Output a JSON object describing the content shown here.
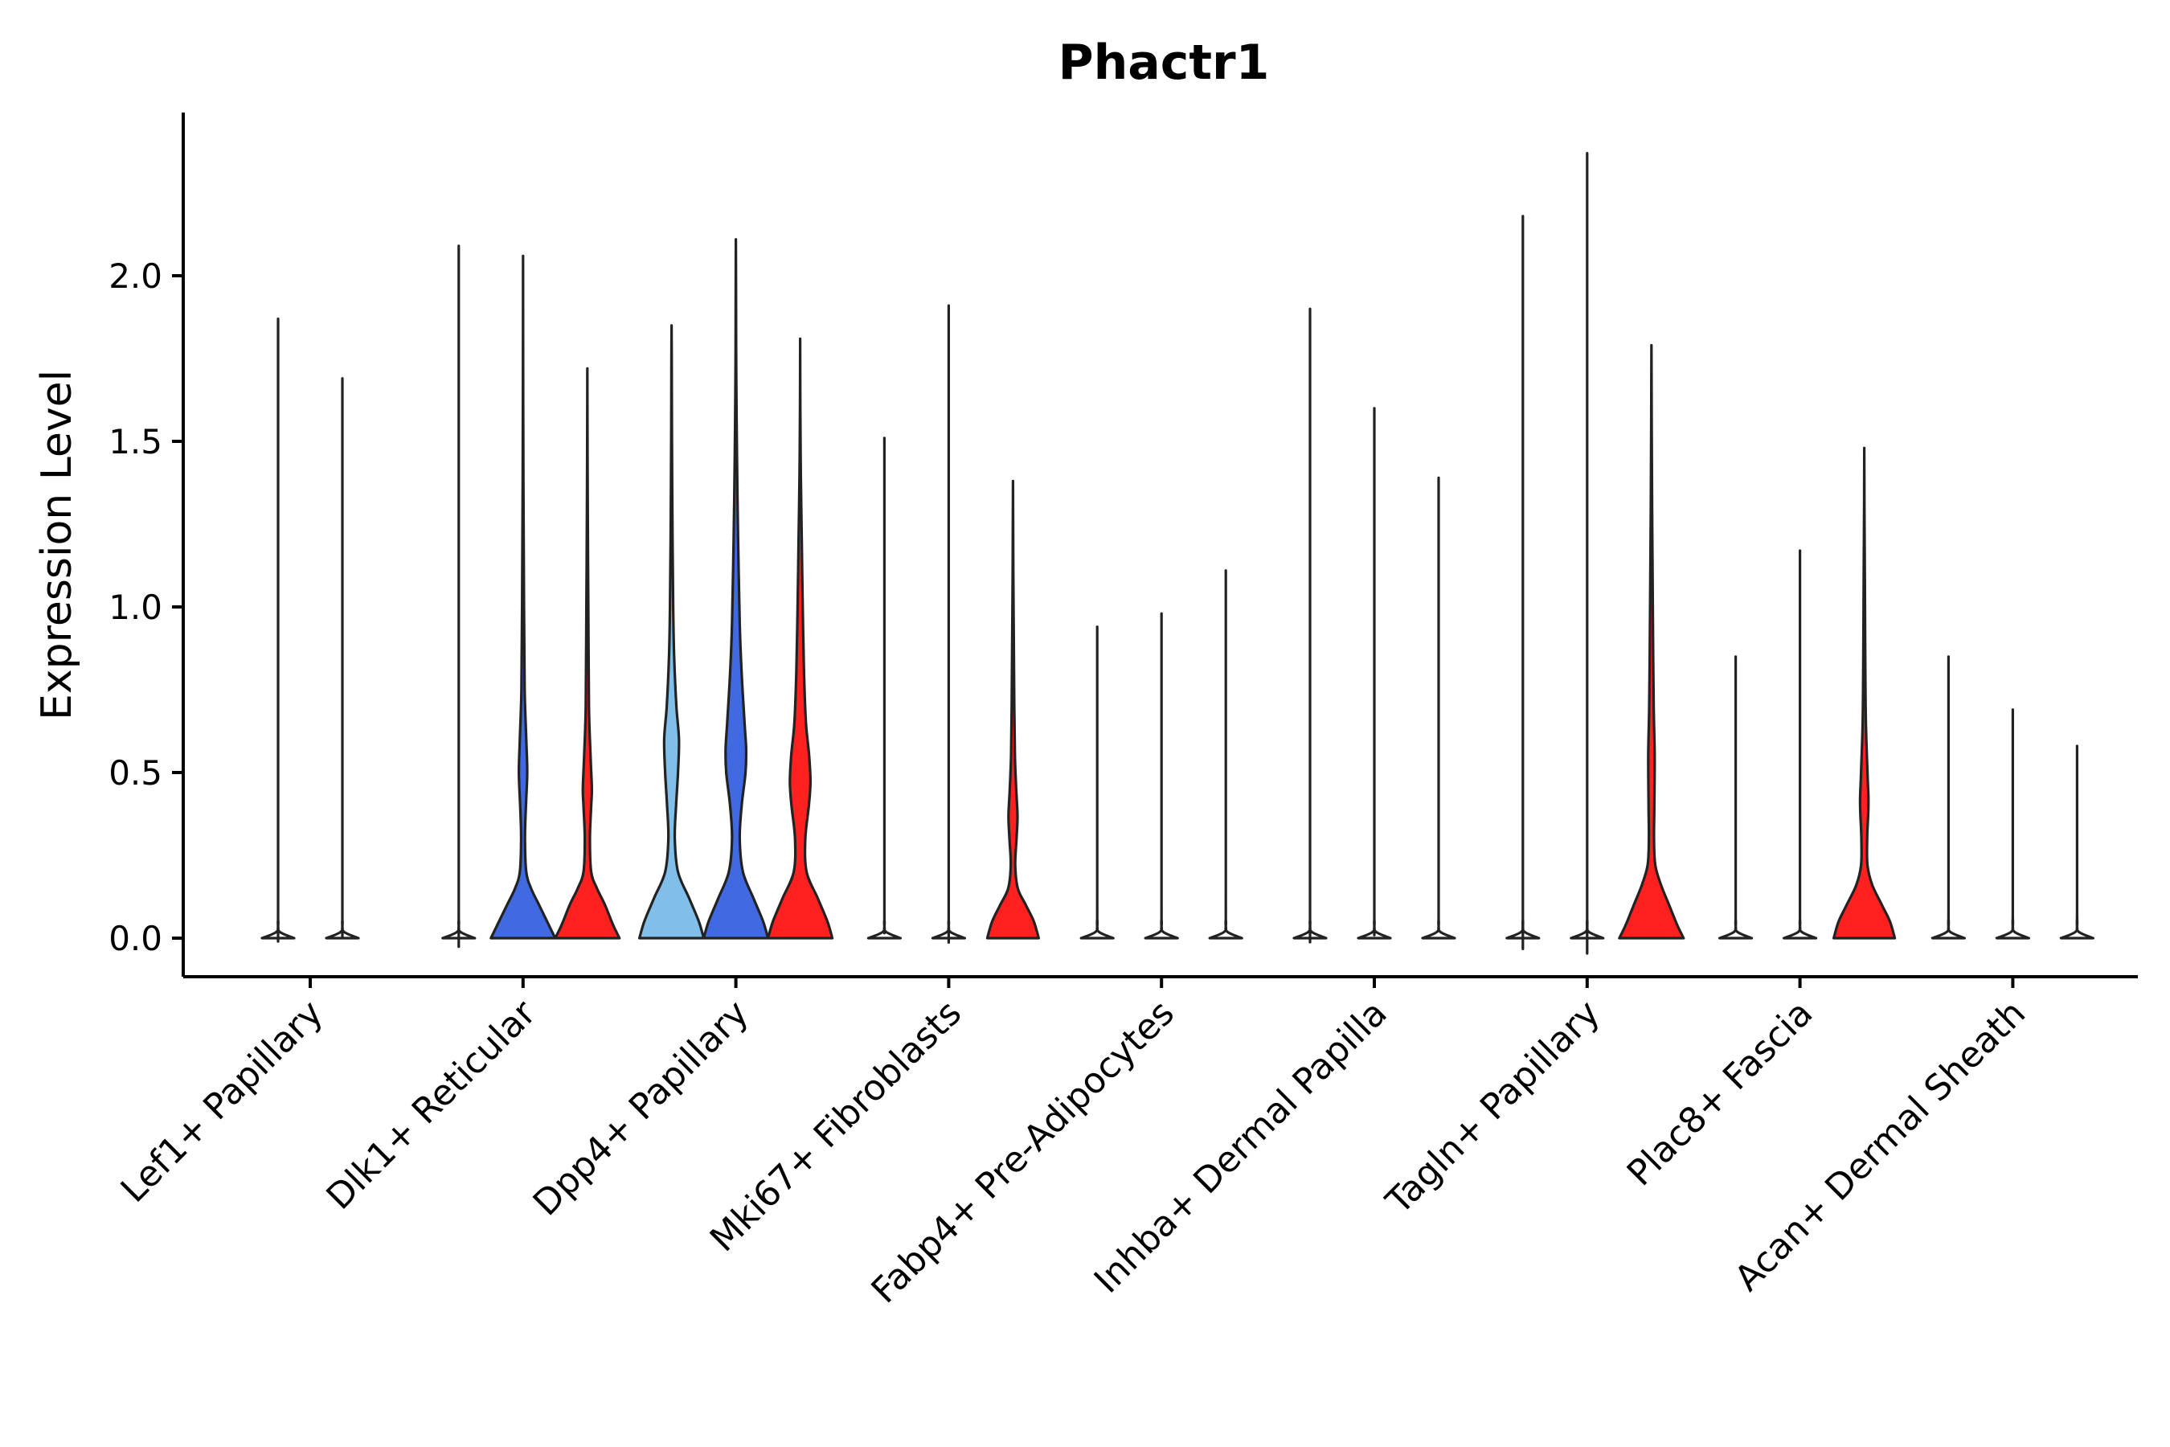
{
  "chart_data": {
    "type": "violin",
    "title": "Phactr1",
    "xlabel": "",
    "ylabel": "Expression Level",
    "ylim": [
      -0.12,
      2.5
    ],
    "yticks": [
      "0.0",
      "0.5",
      "1.0",
      "1.5",
      "2.0"
    ],
    "categories": [
      "Lef1+ Papillary",
      "Dlk1+ Reticular",
      "Dpp4+ Papillary",
      "Mki67+ Fibroblasts",
      "Fabp4+ Pre-Adipocytes",
      "Inhba+ Dermal Papilla",
      "Tagln+ Papillary",
      "Plac8+ Fascia",
      "Acan+ Dermal Sheath"
    ],
    "groups": [
      {
        "category": 0,
        "violins": [
          {
            "max": 1.87,
            "color": "#ffffff",
            "shape": [
              [
                0,
                0.5
              ],
              [
                0.02,
                0.04
              ],
              [
                0.05,
                0.005
              ],
              [
                0.15,
                0
              ]
            ]
          },
          {
            "max": 1.69,
            "color": "#ffffff",
            "shape": [
              [
                0,
                0.5
              ],
              [
                0.02,
                0.04
              ],
              [
                0.05,
                0.005
              ],
              [
                0.15,
                0
              ]
            ]
          }
        ]
      },
      {
        "category": 1,
        "violins": [
          {
            "max": 2.09,
            "color": "#ffffff",
            "shape": [
              [
                0,
                0.5
              ],
              [
                0.02,
                0.04
              ],
              [
                0.05,
                0.005
              ],
              [
                0.15,
                0
              ]
            ]
          },
          {
            "max": 2.06,
            "color": "#4169e1",
            "shape": [
              [
                0,
                1
              ],
              [
                0.04,
                0.8
              ],
              [
                0.1,
                0.5
              ],
              [
                0.15,
                0.25
              ],
              [
                0.2,
                0.1
              ],
              [
                0.3,
                0.06
              ],
              [
                0.4,
                0.09
              ],
              [
                0.5,
                0.13
              ],
              [
                0.6,
                0.1
              ],
              [
                0.75,
                0.05
              ],
              [
                1.0,
                0.03
              ],
              [
                1.3,
                0.015
              ],
              [
                1.6,
                0.006
              ]
            ]
          },
          {
            "max": 1.72,
            "color": "#ff2020",
            "shape": [
              [
                0,
                1
              ],
              [
                0.04,
                0.8
              ],
              [
                0.1,
                0.55
              ],
              [
                0.15,
                0.3
              ],
              [
                0.2,
                0.12
              ],
              [
                0.3,
                0.08
              ],
              [
                0.4,
                0.12
              ],
              [
                0.45,
                0.14
              ],
              [
                0.55,
                0.1
              ],
              [
                0.7,
                0.05
              ],
              [
                1.0,
                0.03
              ],
              [
                1.3,
                0.012
              ],
              [
                1.5,
                0.005
              ]
            ]
          }
        ]
      },
      {
        "category": 2,
        "violins": [
          {
            "max": 1.85,
            "color": "#7fbfea",
            "shape": [
              [
                0,
                1
              ],
              [
                0.05,
                0.85
              ],
              [
                0.12,
                0.55
              ],
              [
                0.2,
                0.2
              ],
              [
                0.3,
                0.1
              ],
              [
                0.4,
                0.14
              ],
              [
                0.5,
                0.2
              ],
              [
                0.6,
                0.23
              ],
              [
                0.7,
                0.15
              ],
              [
                0.85,
                0.08
              ],
              [
                1.0,
                0.05
              ],
              [
                1.2,
                0.03
              ],
              [
                1.5,
                0.012
              ],
              [
                1.75,
                0.004
              ]
            ]
          },
          {
            "max": 2.11,
            "color": "#4169e1",
            "shape": [
              [
                0,
                1
              ],
              [
                0.05,
                0.85
              ],
              [
                0.12,
                0.55
              ],
              [
                0.2,
                0.22
              ],
              [
                0.3,
                0.12
              ],
              [
                0.4,
                0.18
              ],
              [
                0.5,
                0.3
              ],
              [
                0.57,
                0.32
              ],
              [
                0.65,
                0.27
              ],
              [
                0.8,
                0.18
              ],
              [
                0.95,
                0.12
              ],
              [
                1.2,
                0.07
              ],
              [
                1.45,
                0.035
              ],
              [
                1.7,
                0.012
              ],
              [
                1.95,
                0.004
              ]
            ]
          },
          {
            "max": 1.81,
            "color": "#ff2020",
            "shape": [
              [
                0,
                1
              ],
              [
                0.05,
                0.85
              ],
              [
                0.12,
                0.55
              ],
              [
                0.2,
                0.2
              ],
              [
                0.3,
                0.16
              ],
              [
                0.4,
                0.27
              ],
              [
                0.47,
                0.32
              ],
              [
                0.55,
                0.28
              ],
              [
                0.65,
                0.18
              ],
              [
                0.8,
                0.12
              ],
              [
                1.0,
                0.08
              ],
              [
                1.2,
                0.05
              ],
              [
                1.4,
                0.02
              ],
              [
                1.6,
                0.006
              ]
            ]
          }
        ]
      },
      {
        "category": 3,
        "violins": [
          {
            "max": 1.51,
            "color": "#ffffff",
            "shape": [
              [
                0,
                0.5
              ],
              [
                0.02,
                0.04
              ],
              [
                0.05,
                0.005
              ],
              [
                0.15,
                0
              ]
            ]
          },
          {
            "max": 1.91,
            "color": "#ffffff",
            "shape": [
              [
                0,
                0.5
              ],
              [
                0.02,
                0.04
              ],
              [
                0.05,
                0.005
              ],
              [
                0.15,
                0
              ]
            ]
          },
          {
            "max": 1.38,
            "color": "#ff2020",
            "shape": [
              [
                0,
                0.8
              ],
              [
                0.05,
                0.65
              ],
              [
                0.1,
                0.4
              ],
              [
                0.15,
                0.15
              ],
              [
                0.22,
                0.07
              ],
              [
                0.3,
                0.11
              ],
              [
                0.37,
                0.14
              ],
              [
                0.45,
                0.1
              ],
              [
                0.55,
                0.06
              ],
              [
                0.7,
                0.04
              ],
              [
                0.9,
                0.025
              ],
              [
                1.1,
                0.01
              ],
              [
                1.25,
                0.004
              ]
            ]
          }
        ]
      },
      {
        "category": 4,
        "violins": [
          {
            "max": 0.94,
            "color": "#ffffff",
            "shape": [
              [
                0,
                0.5
              ],
              [
                0.02,
                0.04
              ],
              [
                0.05,
                0.005
              ],
              [
                0.15,
                0
              ]
            ]
          },
          {
            "max": 0.98,
            "color": "#ffffff",
            "shape": [
              [
                0,
                0.5
              ],
              [
                0.02,
                0.04
              ],
              [
                0.05,
                0.005
              ],
              [
                0.15,
                0
              ]
            ]
          },
          {
            "max": 1.11,
            "color": "#ffffff",
            "shape": [
              [
                0,
                0.5
              ],
              [
                0.02,
                0.04
              ],
              [
                0.05,
                0.005
              ],
              [
                0.15,
                0
              ]
            ]
          }
        ]
      },
      {
        "category": 5,
        "violins": [
          {
            "max": 1.9,
            "color": "#ffffff",
            "shape": [
              [
                0,
                0.5
              ],
              [
                0.02,
                0.04
              ],
              [
                0.05,
                0.005
              ],
              [
                0.15,
                0
              ]
            ]
          },
          {
            "max": 1.6,
            "color": "#ffffff",
            "shape": [
              [
                0,
                0.5
              ],
              [
                0.02,
                0.04
              ],
              [
                0.05,
                0.005
              ],
              [
                0.15,
                0
              ]
            ]
          },
          {
            "max": 1.39,
            "color": "#ffffff",
            "shape": [
              [
                0,
                0.5
              ],
              [
                0.02,
                0.04
              ],
              [
                0.05,
                0.005
              ],
              [
                0.15,
                0
              ]
            ]
          }
        ]
      },
      {
        "category": 6,
        "violins": [
          {
            "max": 2.18,
            "color": "#ffffff",
            "shape": [
              [
                0,
                0.5
              ],
              [
                0.02,
                0.04
              ],
              [
                0.05,
                0.005
              ],
              [
                0.15,
                0
              ]
            ]
          },
          {
            "max": 2.37,
            "color": "#ffffff",
            "shape": [
              [
                0,
                0.5
              ],
              [
                0.02,
                0.04
              ],
              [
                0.05,
                0.005
              ],
              [
                0.15,
                0
              ]
            ]
          },
          {
            "max": 1.79,
            "color": "#ff2020",
            "shape": [
              [
                0,
                1
              ],
              [
                0.04,
                0.8
              ],
              [
                0.1,
                0.55
              ],
              [
                0.16,
                0.3
              ],
              [
                0.22,
                0.12
              ],
              [
                0.3,
                0.08
              ],
              [
                0.4,
                0.09
              ],
              [
                0.55,
                0.1
              ],
              [
                0.7,
                0.07
              ],
              [
                0.9,
                0.05
              ],
              [
                1.1,
                0.035
              ],
              [
                1.3,
                0.02
              ],
              [
                1.55,
                0.008
              ]
            ]
          }
        ]
      },
      {
        "category": 7,
        "violins": [
          {
            "max": 0.85,
            "color": "#ffffff",
            "shape": [
              [
                0,
                0.5
              ],
              [
                0.02,
                0.04
              ],
              [
                0.05,
                0.005
              ],
              [
                0.15,
                0
              ]
            ]
          },
          {
            "max": 1.17,
            "color": "#ffffff",
            "shape": [
              [
                0,
                0.5
              ],
              [
                0.02,
                0.04
              ],
              [
                0.05,
                0.005
              ],
              [
                0.15,
                0
              ]
            ]
          },
          {
            "max": 1.48,
            "color": "#ff2020",
            "shape": [
              [
                0,
                0.95
              ],
              [
                0.05,
                0.8
              ],
              [
                0.1,
                0.55
              ],
              [
                0.16,
                0.25
              ],
              [
                0.22,
                0.1
              ],
              [
                0.3,
                0.09
              ],
              [
                0.37,
                0.12
              ],
              [
                0.42,
                0.13
              ],
              [
                0.5,
                0.1
              ],
              [
                0.65,
                0.05
              ],
              [
                0.85,
                0.03
              ],
              [
                1.05,
                0.02
              ],
              [
                1.3,
                0.006
              ]
            ]
          }
        ]
      },
      {
        "category": 8,
        "violins": [
          {
            "max": 0.85,
            "color": "#ffffff",
            "shape": [
              [
                0,
                0.5
              ],
              [
                0.02,
                0.04
              ],
              [
                0.05,
                0.005
              ],
              [
                0.15,
                0
              ]
            ]
          },
          {
            "max": 0.69,
            "color": "#ffffff",
            "shape": [
              [
                0,
                0.5
              ],
              [
                0.02,
                0.04
              ],
              [
                0.05,
                0.005
              ],
              [
                0.15,
                0
              ]
            ]
          },
          {
            "max": 0.58,
            "color": "#ffffff",
            "shape": [
              [
                0,
                0.5
              ],
              [
                0.02,
                0.04
              ],
              [
                0.05,
                0.005
              ],
              [
                0.15,
                0
              ]
            ]
          }
        ]
      }
    ]
  }
}
